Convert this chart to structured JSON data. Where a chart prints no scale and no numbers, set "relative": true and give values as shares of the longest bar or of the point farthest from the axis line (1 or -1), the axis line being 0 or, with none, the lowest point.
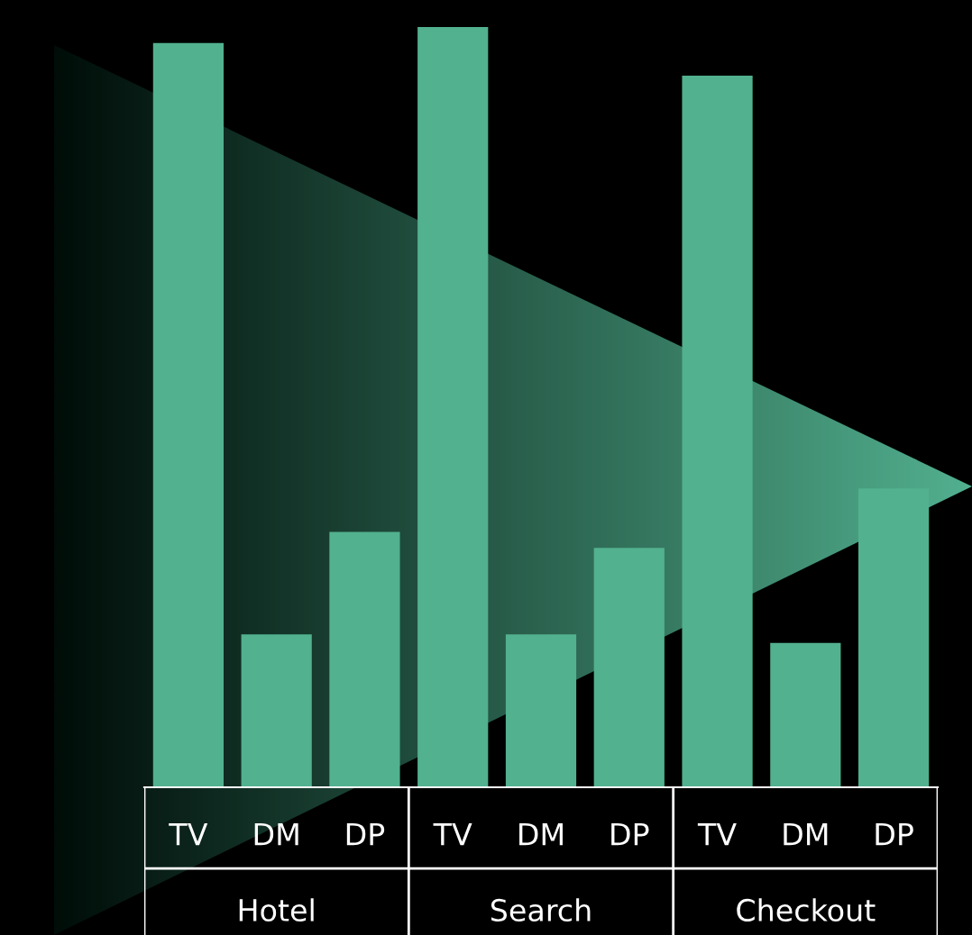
{
  "chart_data": {
    "type": "bar",
    "relative": true,
    "categories": [
      "TV",
      "DM",
      "DP",
      "TV",
      "DM",
      "DP",
      "TV",
      "DM",
      "DP"
    ],
    "values": [
      0.979,
      0.201,
      0.336,
      1,
      0.201,
      0.315,
      0.936,
      0.19,
      0.393
    ],
    "color": "#52b18f",
    "annotations": [
      "Hotel",
      "Search",
      "Checkout"
    ]
  }
}
